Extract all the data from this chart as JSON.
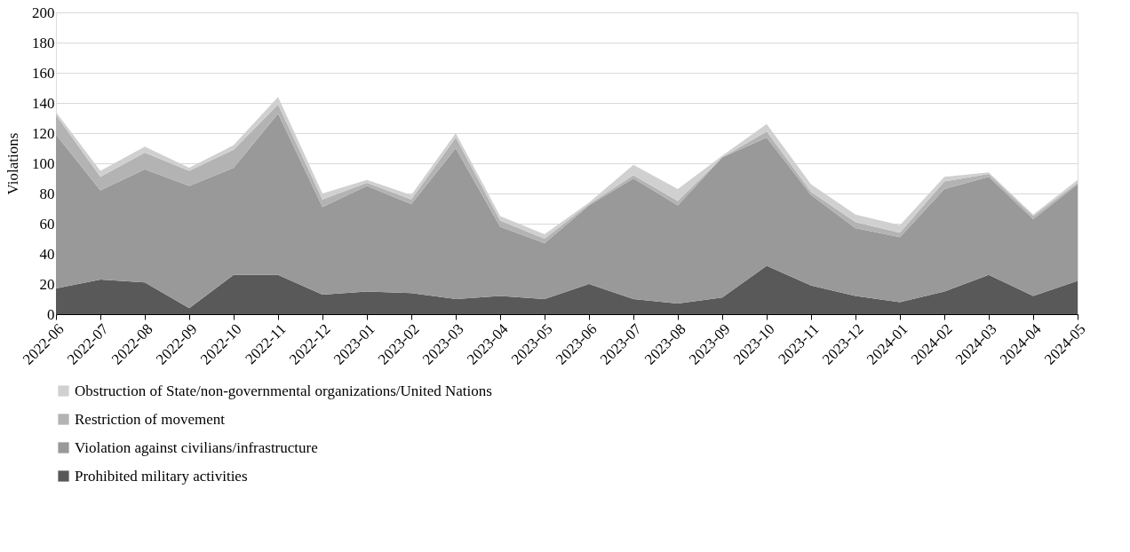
{
  "chart_data": {
    "type": "area",
    "stacked": true,
    "ylabel": "Violations",
    "ylim": [
      0,
      200
    ],
    "yticks": [
      0,
      20,
      40,
      60,
      80,
      100,
      120,
      140,
      160,
      180,
      200
    ],
    "grid": "y",
    "legend": "bottom",
    "categories": [
      "2022-06",
      "2022-07",
      "2022-08",
      "2022-09",
      "2022-10",
      "2022-11",
      "2022-12",
      "2023-01",
      "2023-02",
      "2023-03",
      "2023-04",
      "2023-05",
      "2023-06",
      "2023-07",
      "2023-08",
      "2023-09",
      "2023-10",
      "2023-11",
      "2023-12",
      "2024-01",
      "2024-02",
      "2024-03",
      "2024-04",
      "2024-05"
    ],
    "series": [
      {
        "name": "Prohibited military activities",
        "color": "#595959",
        "values": [
          17,
          23,
          21,
          4,
          26,
          26,
          13,
          15,
          14,
          10,
          12,
          10,
          20,
          10,
          7,
          11,
          32,
          19,
          12,
          8,
          15,
          26,
          12,
          22
        ]
      },
      {
        "name": "Violation against civilians/infrastructure",
        "color": "#999999",
        "values": [
          102,
          59,
          75,
          81,
          71,
          107,
          58,
          70,
          59,
          100,
          46,
          37,
          52,
          80,
          65,
          93,
          85,
          60,
          45,
          43,
          68,
          65,
          51,
          64
        ]
      },
      {
        "name": "Restriction of movement",
        "color": "#b3b3b3",
        "values": [
          13,
          9,
          11,
          10,
          12,
          6,
          5,
          2,
          3,
          7,
          4,
          3,
          1,
          2,
          3,
          0,
          4,
          2,
          4,
          3,
          5,
          2,
          2,
          1
        ]
      },
      {
        "name": "Obstruction of State/non-governmental organizations/United Nations",
        "color": "#d0d0d0",
        "values": [
          2,
          4,
          4,
          2,
          3,
          5,
          4,
          2,
          3,
          3,
          3,
          3,
          1,
          7,
          8,
          1,
          5,
          5,
          5,
          5,
          3,
          1,
          1,
          2
        ]
      }
    ]
  }
}
